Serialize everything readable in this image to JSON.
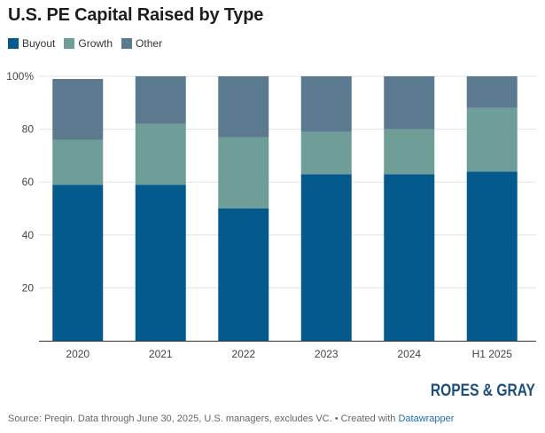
{
  "title": "U.S. PE Capital Raised by Type",
  "legend": [
    {
      "label": "Buyout",
      "color": "#045a8d"
    },
    {
      "label": "Growth",
      "color": "#6f9e98"
    },
    {
      "label": "Other",
      "color": "#5b7a90"
    }
  ],
  "logo_text": "ROPES & GRAY",
  "footer": {
    "source": "Source: Preqin. Data through June 30, 2025, U.S. managers, excludes VC.",
    "separator": "• Created with",
    "tool": "Datawrapper"
  },
  "chart_data": {
    "type": "bar",
    "stacked": true,
    "categories": [
      "2020",
      "2021",
      "2022",
      "2023",
      "2024",
      "H1  2025"
    ],
    "series": [
      {
        "name": "Buyout",
        "color": "#045a8d",
        "values": [
          59,
          59,
          50,
          63,
          63,
          64
        ]
      },
      {
        "name": "Growth",
        "color": "#6f9e98",
        "values": [
          17,
          23,
          27,
          16,
          17,
          24
        ]
      },
      {
        "name": "Other",
        "color": "#5b7a90",
        "values": [
          23,
          18,
          23,
          21,
          20,
          12
        ]
      }
    ],
    "yticks": [
      "20",
      "40",
      "60",
      "80",
      "100%"
    ],
    "ylim": [
      0,
      100
    ],
    "grid": true,
    "legend_position": "top-left"
  }
}
